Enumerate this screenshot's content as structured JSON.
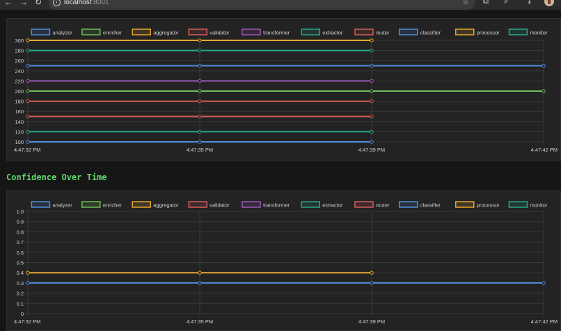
{
  "browser": {
    "url_host": "localhost",
    "url_port": ":8001",
    "icons": [
      "back-arrow-icon",
      "forward-arrow-icon",
      "reload-icon",
      "info-icon",
      "star-icon",
      "extensions-icon",
      "search-tab-icon",
      "download-icon",
      "profile-avatar"
    ]
  },
  "section_title": "Confidence Over Time",
  "series_colors": {
    "analyzer": "#4f8fdc",
    "enricher": "#6fbf5a",
    "aggregator": "#e8a830",
    "validator": "#d65c5c",
    "transformer": "#9b59b6",
    "extractor": "#2aa88a",
    "router": "#d65c5c",
    "classifier": "#4f8fdc",
    "processor": "#e8a830",
    "monitor": "#2aa88a"
  },
  "chart_data": [
    {
      "type": "line",
      "title": "",
      "legend_position": "top",
      "grid": true,
      "x": [
        "4:47:32 PM",
        "4:47:35 PM",
        "4:47:39 PM",
        "4:47:42 PM"
      ],
      "ylim": [
        100,
        300
      ],
      "yticks": [
        100,
        120,
        140,
        160,
        180,
        200,
        220,
        240,
        260,
        280,
        300
      ],
      "series": [
        {
          "name": "analyzer",
          "values": [
            100,
            100,
            100,
            null
          ]
        },
        {
          "name": "enricher",
          "values": [
            200,
            200,
            200,
            200
          ]
        },
        {
          "name": "aggregator",
          "values": [
            300,
            300,
            300,
            null
          ]
        },
        {
          "name": "validator",
          "values": [
            180,
            180,
            180,
            null
          ]
        },
        {
          "name": "transformer",
          "values": [
            220,
            220,
            220,
            null
          ]
        },
        {
          "name": "extractor",
          "values": [
            120,
            120,
            120,
            null
          ]
        },
        {
          "name": "router",
          "values": [
            150,
            150,
            150,
            null
          ]
        },
        {
          "name": "classifier",
          "values": [
            250,
            250,
            250,
            250
          ]
        },
        {
          "name": "processor",
          "values": [
            null,
            null,
            null,
            null
          ]
        },
        {
          "name": "monitor",
          "values": [
            280,
            280,
            280,
            null
          ]
        }
      ]
    },
    {
      "type": "line",
      "title": "Confidence Over Time",
      "legend_position": "top",
      "grid": true,
      "x": [
        "4:47:32 PM",
        "4:47:35 PM",
        "4:47:39 PM",
        "4:47:42 PM"
      ],
      "ylim": [
        0,
        1.0
      ],
      "yticks": [
        0,
        0.1,
        0.2,
        0.3,
        0.4,
        0.5,
        0.6,
        0.7,
        0.8,
        0.9,
        1.0
      ],
      "series": [
        {
          "name": "analyzer",
          "values": [
            0.3,
            0.3,
            0.3,
            0.3
          ]
        },
        {
          "name": "enricher",
          "values": [
            null,
            null,
            null,
            null
          ]
        },
        {
          "name": "aggregator",
          "values": [
            0.4,
            0.4,
            0.4,
            null
          ]
        },
        {
          "name": "validator",
          "values": [
            null,
            null,
            null,
            null
          ]
        },
        {
          "name": "transformer",
          "values": [
            null,
            null,
            null,
            null
          ]
        },
        {
          "name": "extractor",
          "values": [
            null,
            null,
            null,
            null
          ]
        },
        {
          "name": "router",
          "values": [
            null,
            null,
            null,
            null
          ]
        },
        {
          "name": "classifier",
          "values": [
            null,
            null,
            null,
            null
          ]
        },
        {
          "name": "processor",
          "values": [
            null,
            null,
            null,
            null
          ]
        },
        {
          "name": "monitor",
          "values": [
            null,
            null,
            null,
            null
          ]
        }
      ]
    }
  ]
}
